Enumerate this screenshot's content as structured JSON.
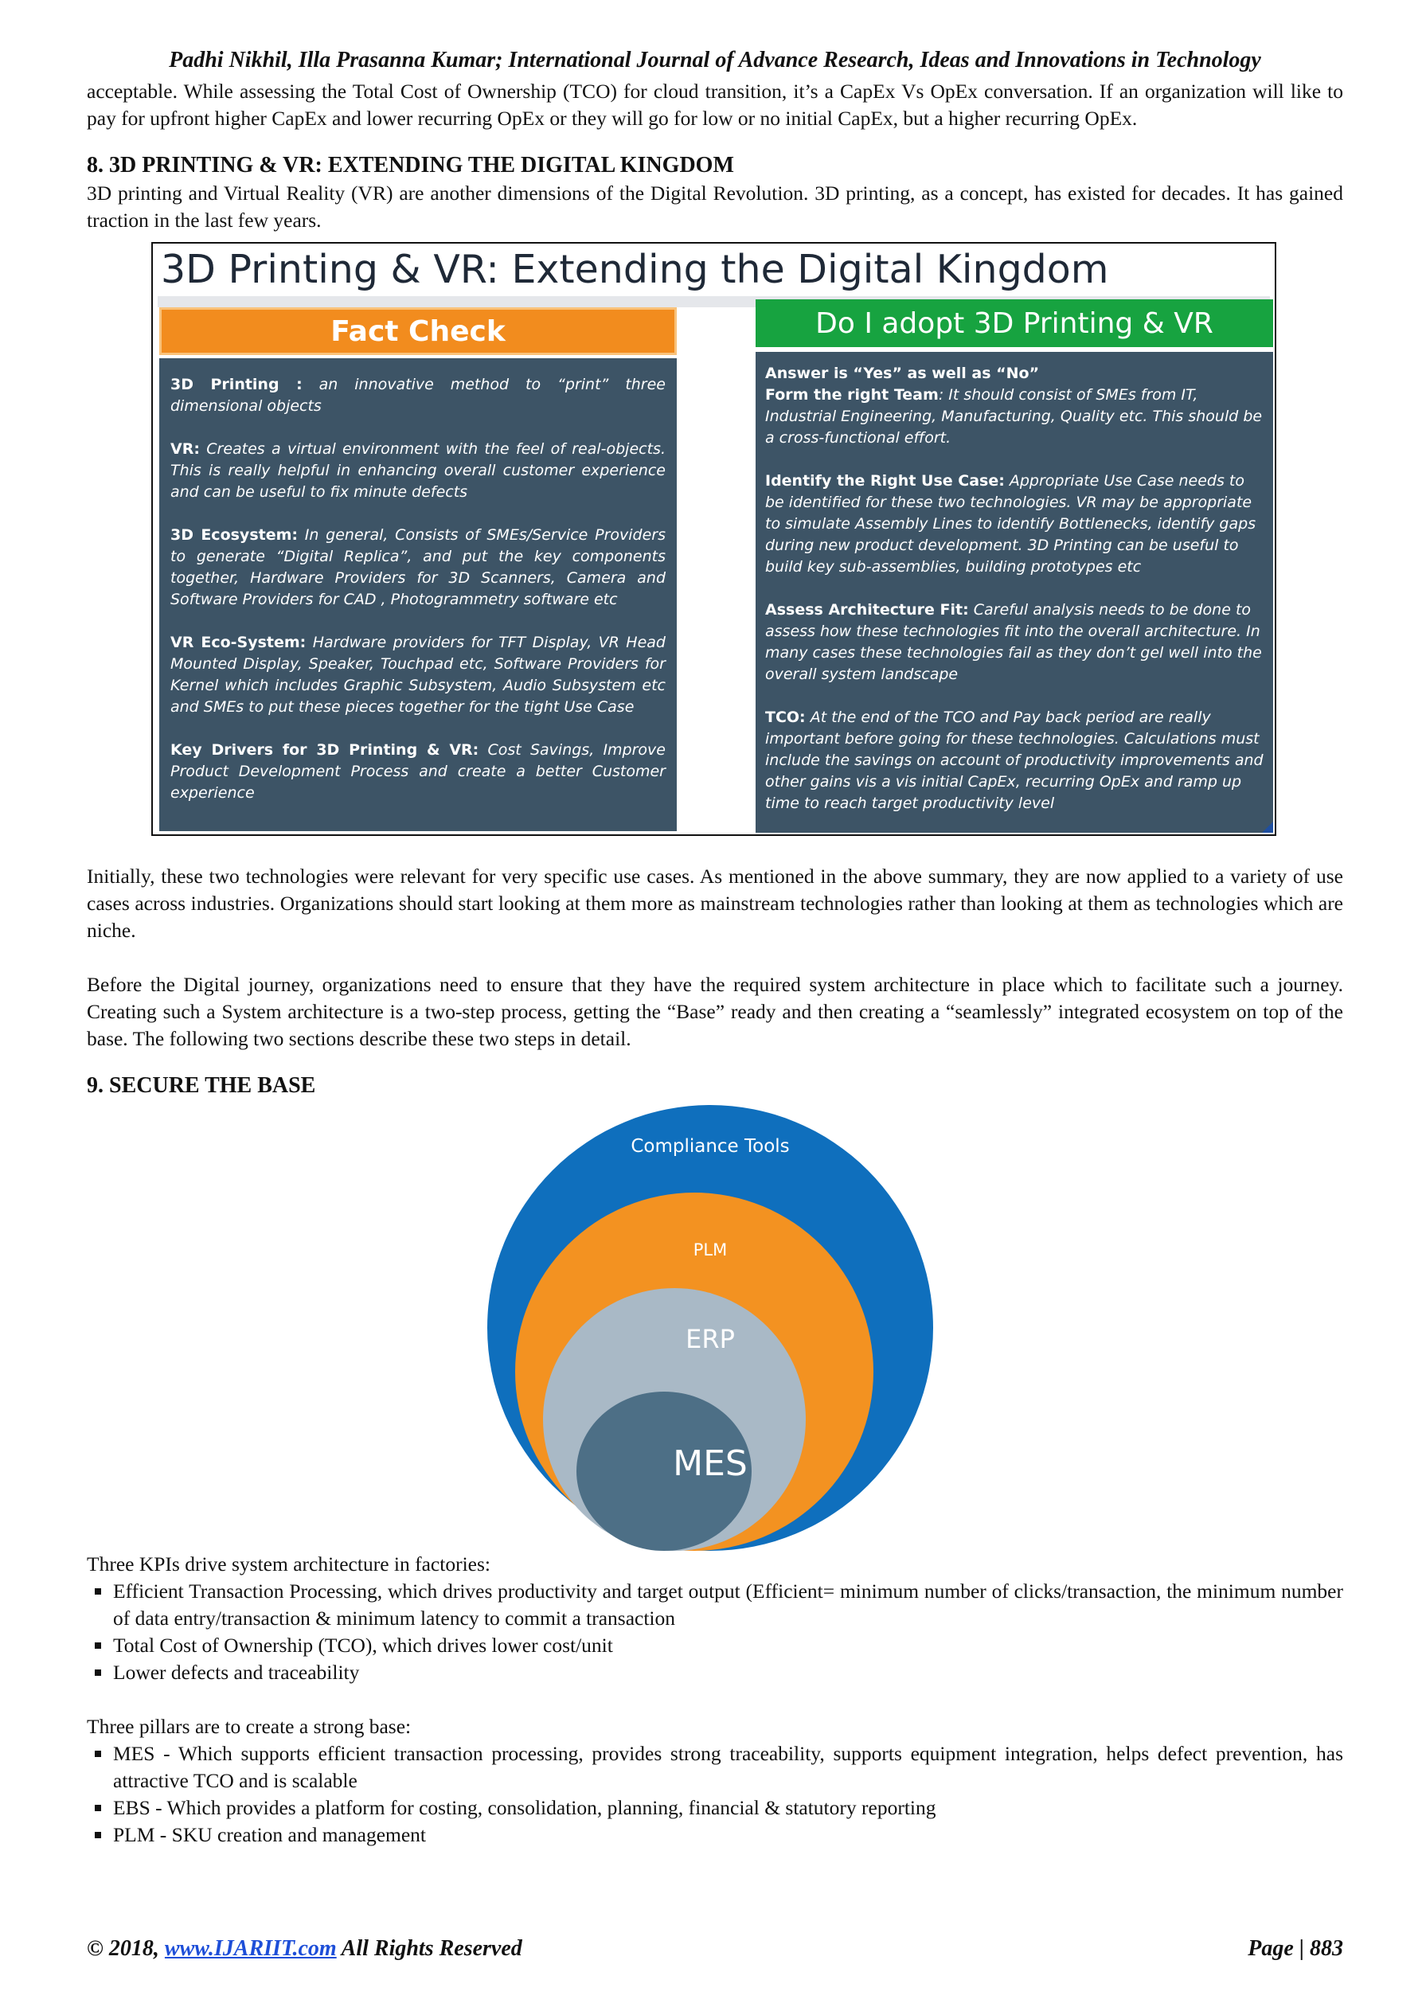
{
  "header": {
    "running_head": "Padhi Nikhil, Illa Prasanna Kumar; International Journal of Advance Research, Ideas and Innovations in Technology"
  },
  "intro_paragraph": "acceptable. While assessing the Total Cost of Ownership (TCO) for cloud transition, it’s a CapEx Vs OpEx conversation. If an organization will like to pay for upfront higher CapEx and lower recurring OpEx or they will go for low or no initial CapEx, but a higher recurring OpEx.",
  "section8": {
    "heading": "8. 3D PRINTING & VR: EXTENDING THE DIGITAL KINGDOM",
    "paragraph1": "3D printing and Virtual Reality (VR) are another dimensions of the Digital Revolution. 3D printing, as a concept, has existed for decades. It has gained traction in the last few years.",
    "paragraph2": "Initially, these two technologies were relevant for very specific use cases. As mentioned in the above summary, they are now applied to a variety of use cases across industries. Organizations should start looking at them more as mainstream technologies rather than looking at them as technologies which are niche.",
    "paragraph3": "Before the Digital journey, organizations need to ensure that they have the required system architecture in place which to facilitate such a journey. Creating such a System architecture is a two-step process, getting the “Base” ready and then creating a “seamlessly” integrated ecosystem on top of the base. The following two sections describe these two steps in detail."
  },
  "figure1": {
    "title": "3D Printing & VR: Extending the Digital Kingdom",
    "left_header": "Fact Check",
    "right_header": "Do I adopt 3D Printing & VR",
    "left_items": [
      {
        "term": "3D Printing :",
        "text": " an innovative method to “print” three dimensional objects"
      },
      {
        "term": "VR:",
        "text": " Creates a virtual environment with the feel of real-objects. This is really helpful in enhancing overall customer experience and can be useful to fix minute defects"
      },
      {
        "term": "3D Ecosystem:",
        "text": " In general, Consists of SMEs/Service Providers to generate “Digital Replica”, and put the key components together, Hardware Providers for 3D Scanners, Camera and Software Providers for CAD , Photogrammetry software etc"
      },
      {
        "term": "VR Eco-System:",
        "text": " Hardware providers for TFT Display, VR Head Mounted Display, Speaker, Touchpad etc, Software Providers for Kernel which includes Graphic Subsystem, Audio Subsystem etc and SMEs to put these pieces together for the tight Use Case"
      },
      {
        "term": "Key Drivers for 3D Printing & VR:",
        "text": " Cost Savings, Improve Product Development Process and create a better Customer experience"
      }
    ],
    "right_answer": "Answer is “Yes” as well as “No”",
    "right_items": [
      {
        "term": "Form the right Team",
        "text": ": It should consist of SMEs from IT, Industrial Engineering, Manufacturing, Quality etc. This should be a cross-functional effort."
      },
      {
        "term": "Identify the Right Use Case:",
        "text": " Appropriate Use Case needs to be identified for these two technologies. VR may be appropriate to simulate Assembly Lines to identify Bottlenecks, identify gaps during new product development. 3D Printing can be useful to build key sub-assemblies, building prototypes etc"
      },
      {
        "term": "Assess Architecture Fit:",
        "text": " Careful analysis needs to be done to assess how these technologies fit into the overall architecture. In many cases these technologies fail as they don’t gel well into the overall system landscape"
      },
      {
        "term": "TCO:",
        "text": " At the end of the TCO and Pay back period are really important before going for these technologies. Calculations must include the savings on account of productivity improvements and other gains vis a vis initial CapEx, recurring OpEx and ramp up time to reach target productivity level"
      }
    ]
  },
  "section9": {
    "heading": "9. SECURE THE BASE",
    "kpi_intro": "Three KPIs drive system architecture in factories:",
    "kpis": [
      "Efficient Transaction Processing, which drives productivity and target output (Efficient= minimum number of clicks/transaction, the minimum number of data entry/transaction & minimum latency to commit a transaction",
      "Total Cost of Ownership (TCO), which drives lower cost/unit",
      "Lower defects and traceability"
    ],
    "pillars_intro": "Three pillars are to create a strong base:",
    "pillars": [
      "MES - Which supports efficient transaction processing, provides strong traceability, supports equipment integration, helps defect prevention, has attractive TCO and is scalable",
      "EBS - Which provides a platform for costing, consolidation, planning, financial & statutory reporting",
      "PLM - SKU creation and management"
    ]
  },
  "figure2": {
    "rings": [
      {
        "label": "Compliance Tools",
        "color": "#0f6fbd"
      },
      {
        "label": "PLM",
        "color": "#f39221"
      },
      {
        "label": "ERP",
        "color": "#a9b9c6"
      },
      {
        "label": "MES",
        "color": "#4d6f86"
      }
    ]
  },
  "footer": {
    "copyright_prefix": "© 2018,",
    "link": "www.IJARIIT.com",
    "copyright_suffix": "All Rights Reserved",
    "page": "Page | 883"
  }
}
